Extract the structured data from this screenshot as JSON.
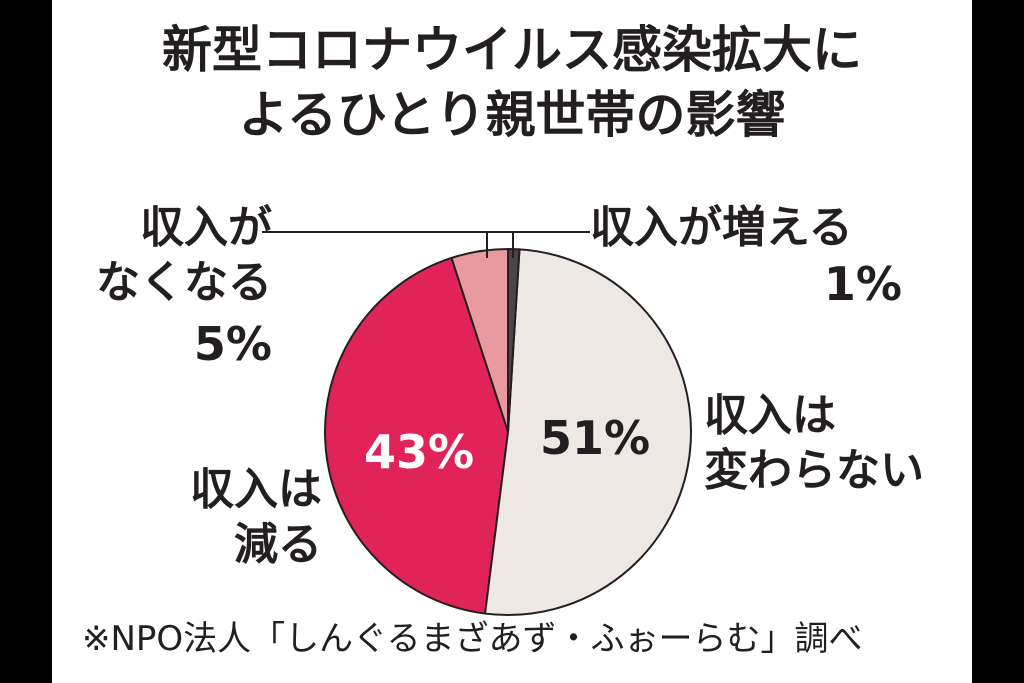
{
  "chart_data": {
    "type": "pie",
    "title": "新型コロナウイルス感染拡大に\nよるひとり親世帯の影響",
    "categories": [
      "収入が増える",
      "収入は\n変わらない",
      "収入は\n減る",
      "収入が\nなくなる"
    ],
    "values": [
      1,
      51,
      43,
      5
    ],
    "value_labels": [
      "1%",
      "51%",
      "43%",
      "5%"
    ],
    "colors": [
      "#4a4546",
      "#ede8e3",
      "#e0245a",
      "#e89aa0"
    ],
    "source": "※NPO法人「しんぐるまざあず・ふぉーらむ」調べ"
  }
}
